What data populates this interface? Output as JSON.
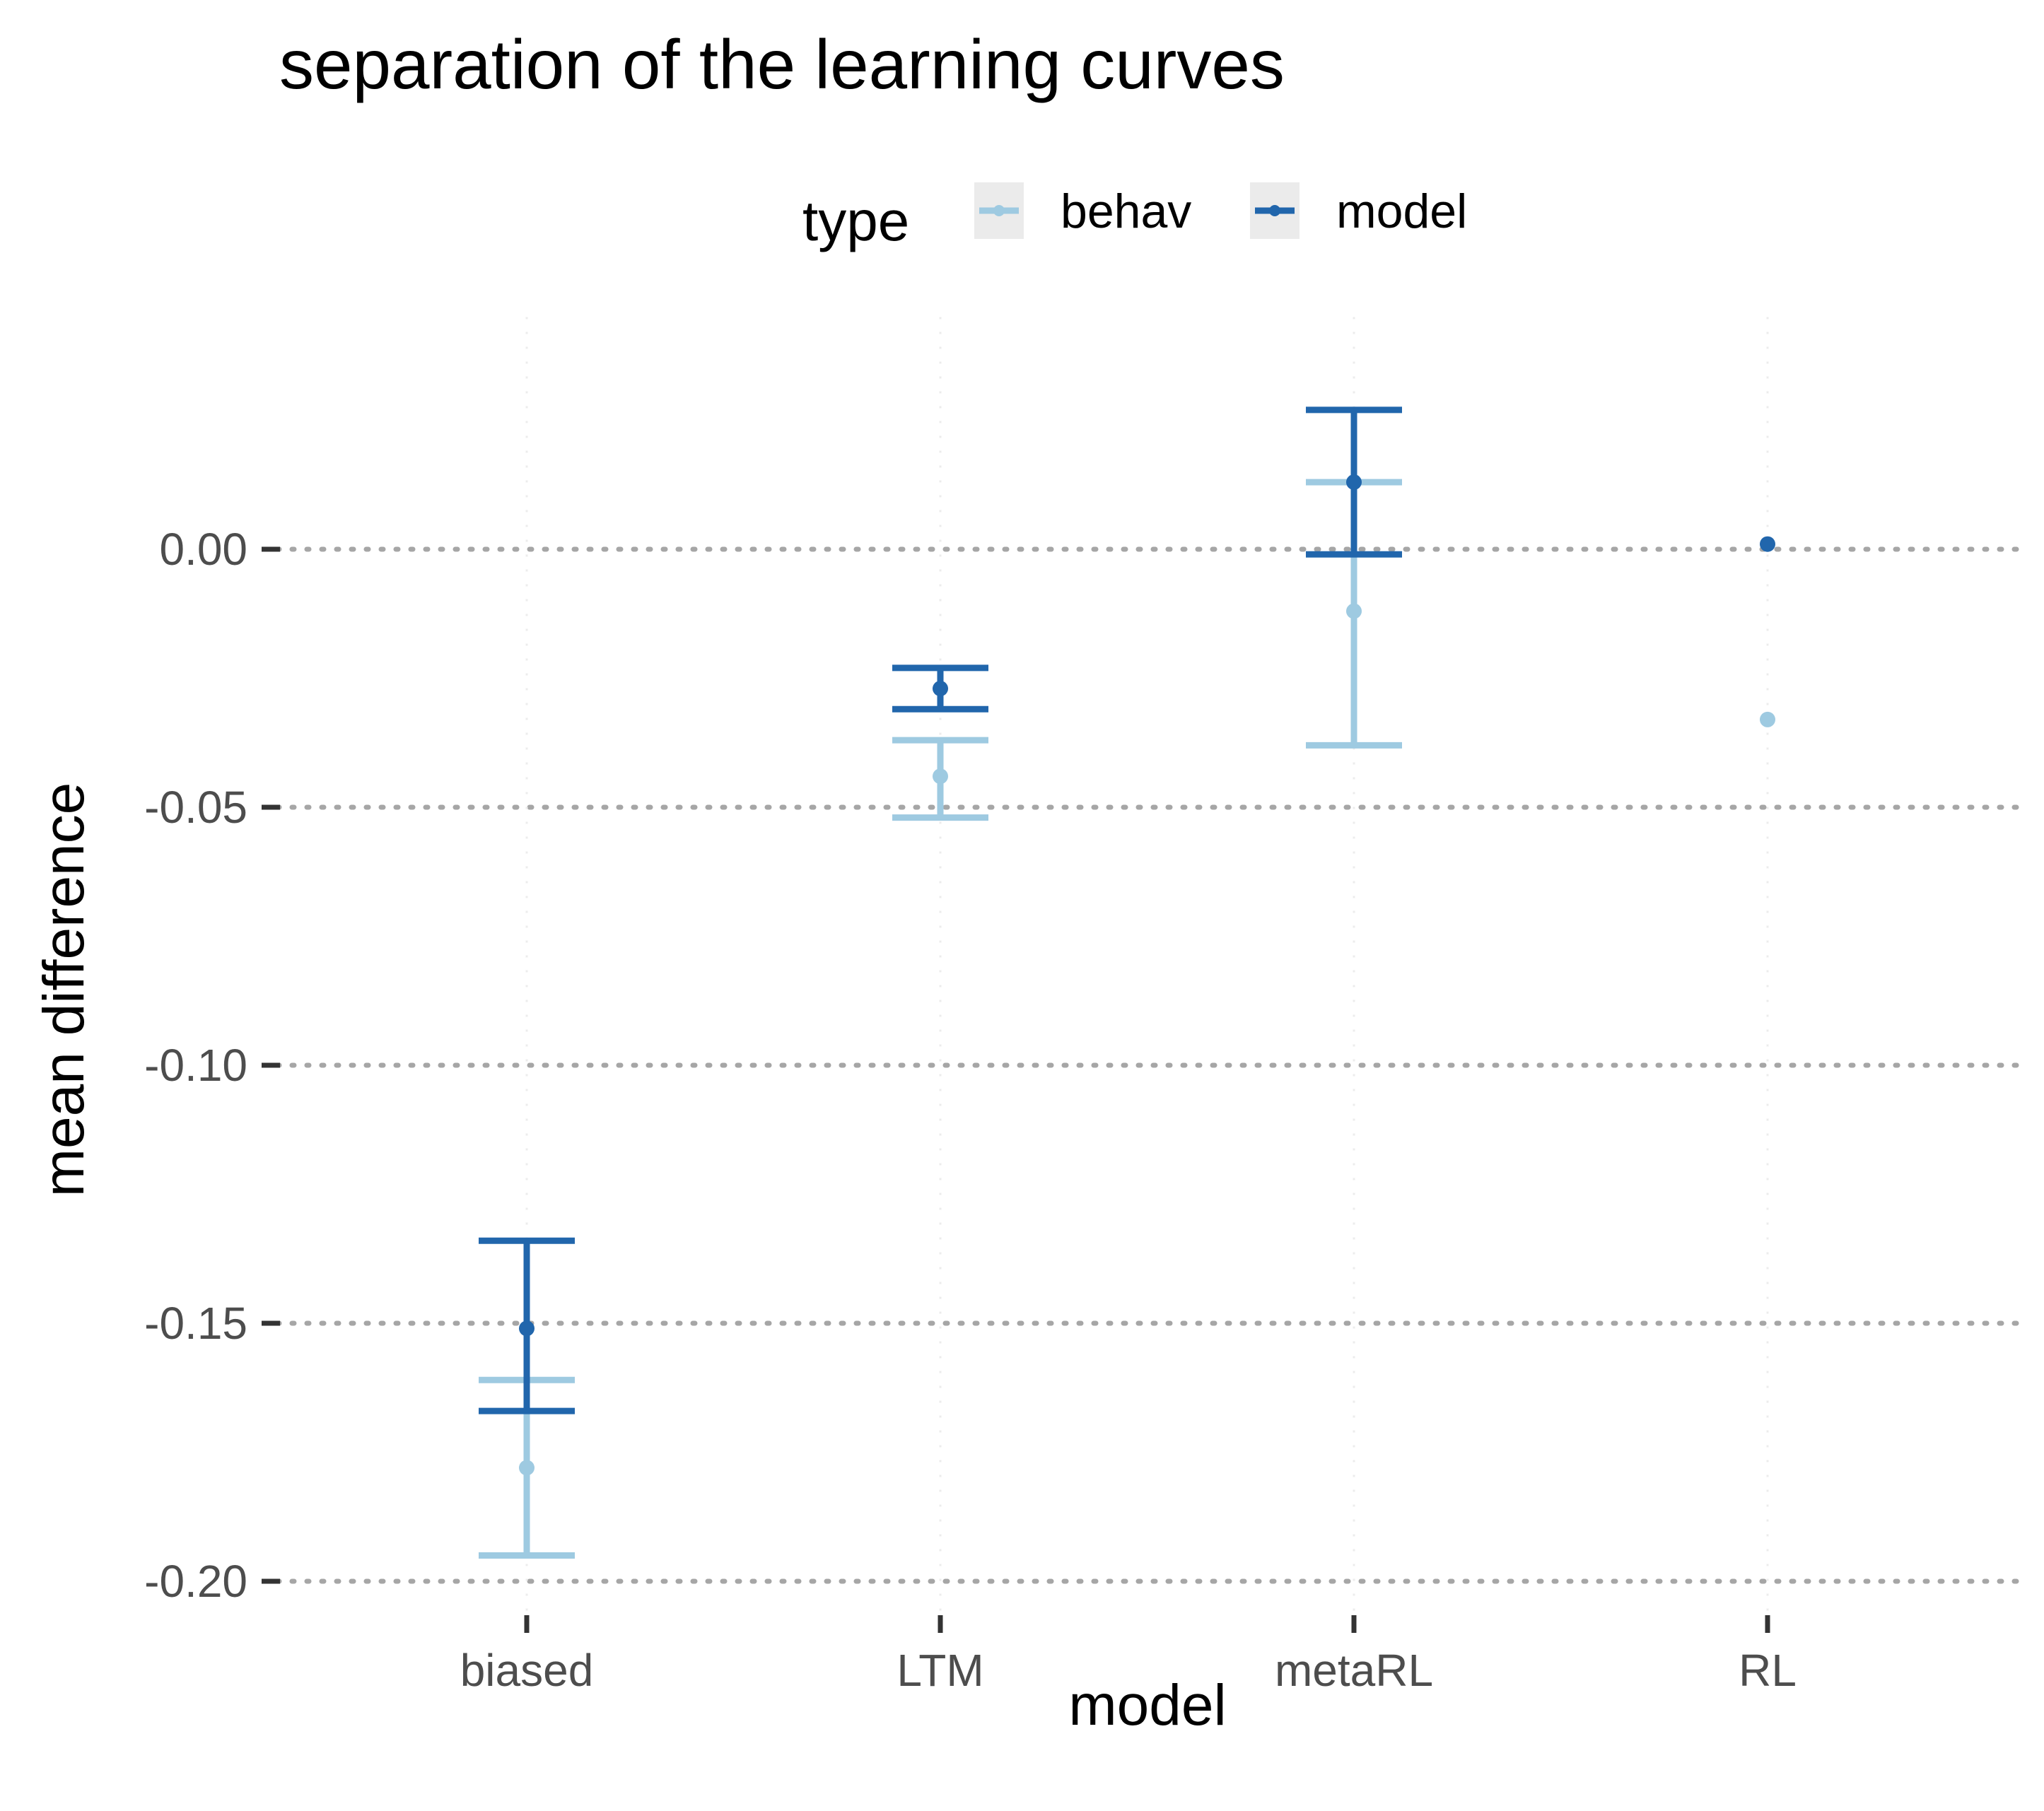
{
  "chart_data": {
    "type": "errorbar",
    "title": "separation of the learning curves",
    "xlabel": "model",
    "ylabel": "mean difference",
    "categories": [
      "biased",
      "LTM",
      "metaRL",
      "RL"
    ],
    "ylim": [
      -0.21,
      0.045
    ],
    "yticks": [
      0.0,
      -0.05,
      -0.1,
      -0.15,
      -0.2
    ],
    "ytick_labels": [
      "0.00",
      "-0.05",
      "-0.10",
      "-0.15",
      "-0.20"
    ],
    "grid": "horizontal dotted major lines",
    "legend": {
      "title": "type",
      "position": "top",
      "entries": [
        "behav",
        "model"
      ]
    },
    "series": [
      {
        "name": "behav",
        "color": "#9ecae1",
        "points": [
          {
            "x": "biased",
            "y": -0.178,
            "lower": -0.195,
            "upper": -0.161
          },
          {
            "x": "LTM",
            "y": -0.044,
            "lower": -0.052,
            "upper": -0.037
          },
          {
            "x": "metaRL",
            "y": -0.012,
            "lower": -0.038,
            "upper": 0.013
          },
          {
            "x": "RL",
            "y": -0.033,
            "lower": null,
            "upper": null
          }
        ]
      },
      {
        "name": "model",
        "color": "#2166ac",
        "points": [
          {
            "x": "biased",
            "y": -0.151,
            "lower": -0.167,
            "upper": -0.134
          },
          {
            "x": "LTM",
            "y": -0.027,
            "lower": -0.031,
            "upper": -0.023
          },
          {
            "x": "metaRL",
            "y": 0.013,
            "lower": -0.001,
            "upper": 0.027
          },
          {
            "x": "RL",
            "y": 0.001,
            "lower": null,
            "upper": null
          }
        ]
      }
    ]
  }
}
